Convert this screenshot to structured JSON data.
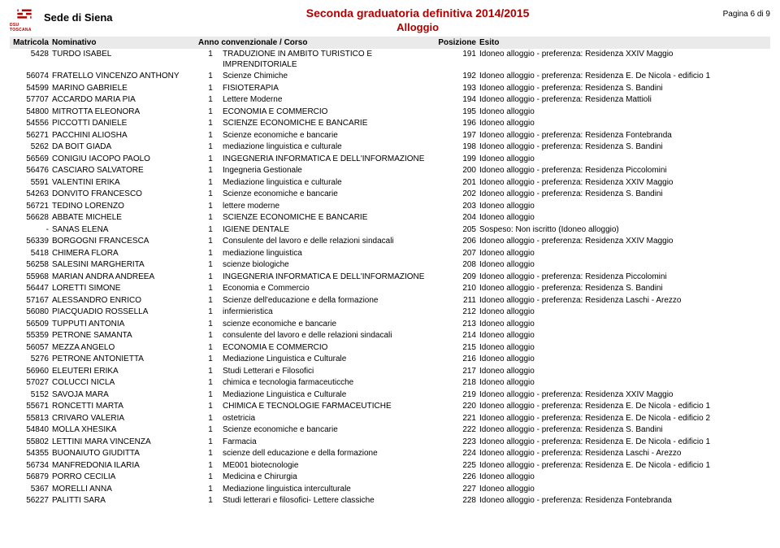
{
  "header": {
    "logo_text": "DSU TOSCANA",
    "sede": "Sede di Siena",
    "title_main": "Seconda graduatoria definitiva 2014/2015",
    "title_sub": "Alloggio",
    "page_num": "Pagina 6 di 9"
  },
  "columns": {
    "matricola": "Matricola",
    "nominativo": "Nominativo",
    "anno_corso": "Anno convenzionale / Corso",
    "posizione": "Posizione",
    "esito": "Esito"
  },
  "rows": [
    {
      "mat": "5428",
      "nom": "TURDO ISABEL",
      "anno": "1",
      "corso": "TRADUZIONE IN AMBITO TURISTICO E IMPRENDITORIALE",
      "pos": "191",
      "esito": "Idoneo alloggio - preferenza: Residenza XXIV Maggio"
    },
    {
      "mat": "56074",
      "nom": "FRATELLO VINCENZO ANTHONY",
      "anno": "1",
      "corso": "Scienze Chimiche",
      "pos": "192",
      "esito": "Idoneo alloggio - preferenza: Residenza E. De Nicola - edificio 1"
    },
    {
      "mat": "54599",
      "nom": "MARINO GABRIELE",
      "anno": "1",
      "corso": "FISIOTERAPIA",
      "pos": "193",
      "esito": "Idoneo alloggio - preferenza: Residenza S. Bandini"
    },
    {
      "mat": "57707",
      "nom": "ACCARDO MARIA PIA",
      "anno": "1",
      "corso": "Lettere Moderne",
      "pos": "194",
      "esito": "Idoneo alloggio - preferenza: Residenza Mattioli"
    },
    {
      "mat": "54800",
      "nom": "MITROTTA ELEONORA",
      "anno": "1",
      "corso": "ECONOMIA E COMMERCIO",
      "pos": "195",
      "esito": "Idoneo alloggio"
    },
    {
      "mat": "54556",
      "nom": "PICCOTTI DANIELE",
      "anno": "1",
      "corso": "SCIENZE ECONOMICHE E BANCARIE",
      "pos": "196",
      "esito": "Idoneo alloggio"
    },
    {
      "mat": "56271",
      "nom": "PACCHINI ALIOSHA",
      "anno": "1",
      "corso": "Scienze economiche e bancarie",
      "pos": "197",
      "esito": "Idoneo alloggio - preferenza: Residenza Fontebranda"
    },
    {
      "mat": "5262",
      "nom": "DA BOIT GIADA",
      "anno": "1",
      "corso": "mediazione linguistica e culturale",
      "pos": "198",
      "esito": "Idoneo alloggio - preferenza: Residenza S. Bandini"
    },
    {
      "mat": "56569",
      "nom": "CONIGIU IACOPO PAOLO",
      "anno": "1",
      "corso": "INGEGNERIA INFORMATICA E DELL'INFORMAZIONE",
      "pos": "199",
      "esito": "Idoneo alloggio"
    },
    {
      "mat": "56476",
      "nom": "CASCIARO SALVATORE",
      "anno": "1",
      "corso": "Ingegneria Gestionale",
      "pos": "200",
      "esito": "Idoneo alloggio - preferenza: Residenza Piccolomini"
    },
    {
      "mat": "5591",
      "nom": "VALENTINI ERIKA",
      "anno": "1",
      "corso": "Mediazione linguistica e culturale",
      "pos": "201",
      "esito": "Idoneo alloggio - preferenza: Residenza XXIV Maggio"
    },
    {
      "mat": "54263",
      "nom": "DONVITO FRANCESCO",
      "anno": "1",
      "corso": "Scienze economiche e bancarie",
      "pos": "202",
      "esito": "Idoneo alloggio - preferenza: Residenza S. Bandini"
    },
    {
      "mat": "56721",
      "nom": "TEDINO LORENZO",
      "anno": "1",
      "corso": "lettere moderne",
      "pos": "203",
      "esito": "Idoneo alloggio"
    },
    {
      "mat": "56628",
      "nom": "ABBATE MICHELE",
      "anno": "1",
      "corso": "SCIENZE ECONOMICHE E BANCARIE",
      "pos": "204",
      "esito": "Idoneo alloggio"
    },
    {
      "mat": "-",
      "nom": "SANAS ELENA",
      "anno": "1",
      "corso": "IGIENE DENTALE",
      "pos": "205",
      "esito": "Sospeso: Non iscritto (Idoneo alloggio)"
    },
    {
      "mat": "56339",
      "nom": "BORGOGNI FRANCESCA",
      "anno": "1",
      "corso": "Consulente del lavoro e delle relazioni sindacali",
      "pos": "206",
      "esito": "Idoneo alloggio - preferenza: Residenza XXIV Maggio"
    },
    {
      "mat": "5418",
      "nom": "CHIMERA FLORA",
      "anno": "1",
      "corso": "mediazione linguistica",
      "pos": "207",
      "esito": "Idoneo alloggio"
    },
    {
      "mat": "56258",
      "nom": "SALESINI MARGHERITA",
      "anno": "1",
      "corso": "scienze biologiche",
      "pos": "208",
      "esito": "Idoneo alloggio"
    },
    {
      "mat": "55968",
      "nom": "MARIAN ANDRA ANDREEA",
      "anno": "1",
      "corso": "INGEGNERIA INFORMATICA E DELL'INFORMAZIONE",
      "pos": "209",
      "esito": "Idoneo alloggio - preferenza: Residenza Piccolomini"
    },
    {
      "mat": "56447",
      "nom": "LORETTI SIMONE",
      "anno": "1",
      "corso": "Economia e Commercio",
      "pos": "210",
      "esito": "Idoneo alloggio - preferenza: Residenza S. Bandini"
    },
    {
      "mat": "57167",
      "nom": "ALESSANDRO ENRICO",
      "anno": "1",
      "corso": "Scienze dell'educazione e della formazione",
      "pos": "211",
      "esito": "Idoneo alloggio - preferenza: Residenza Laschi - Arezzo"
    },
    {
      "mat": "56080",
      "nom": "PIACQUADIO ROSSELLA",
      "anno": "1",
      "corso": "infermieristica",
      "pos": "212",
      "esito": "Idoneo alloggio"
    },
    {
      "mat": "56509",
      "nom": "TUPPUTI ANTONIA",
      "anno": "1",
      "corso": "scienze economiche e bancarie",
      "pos": "213",
      "esito": "Idoneo alloggio"
    },
    {
      "mat": "55359",
      "nom": "PETRONE SAMANTA",
      "anno": "1",
      "corso": "consulente del lavoro e delle relazioni sindacali",
      "pos": "214",
      "esito": "Idoneo alloggio"
    },
    {
      "mat": "56057",
      "nom": "MEZZA ANGELO",
      "anno": "1",
      "corso": "ECONOMIA E COMMERCIO",
      "pos": "215",
      "esito": "Idoneo alloggio"
    },
    {
      "mat": "5276",
      "nom": "PETRONE ANTONIETTA",
      "anno": "1",
      "corso": "Mediazione Linguistica e Culturale",
      "pos": "216",
      "esito": "Idoneo alloggio"
    },
    {
      "mat": "56960",
      "nom": "ELEUTERI ERIKA",
      "anno": "1",
      "corso": "Studi Letterari e Filosofici",
      "pos": "217",
      "esito": "Idoneo alloggio"
    },
    {
      "mat": "57027",
      "nom": "COLUCCI NICLA",
      "anno": "1",
      "corso": "chimica e tecnologia farmaceuticche",
      "pos": "218",
      "esito": "Idoneo alloggio"
    },
    {
      "mat": "5152",
      "nom": "SAVOJA MARA",
      "anno": "1",
      "corso": "Mediazione Linguistica e Culturale",
      "pos": "219",
      "esito": "Idoneo alloggio - preferenza: Residenza XXIV Maggio"
    },
    {
      "mat": "55671",
      "nom": "RONCETTI MARTA",
      "anno": "1",
      "corso": "CHIMICA E TECNOLOGIE FARMACEUTICHE",
      "pos": "220",
      "esito": "Idoneo alloggio - preferenza: Residenza E. De Nicola - edificio 1"
    },
    {
      "mat": "55813",
      "nom": "CRIVARO VALERIA",
      "anno": "1",
      "corso": "ostetricia",
      "pos": "221",
      "esito": "Idoneo alloggio - preferenza: Residenza E. De Nicola - edificio 2"
    },
    {
      "mat": "54840",
      "nom": "MOLLA XHESIKA",
      "anno": "1",
      "corso": "Scienze economiche  e bancarie",
      "pos": "222",
      "esito": "Idoneo alloggio - preferenza: Residenza S. Bandini"
    },
    {
      "mat": "55802",
      "nom": "LETTINI MARA VINCENZA",
      "anno": "1",
      "corso": "Farmacia",
      "pos": "223",
      "esito": "Idoneo alloggio - preferenza: Residenza E. De Nicola - edificio 1"
    },
    {
      "mat": "54355",
      "nom": "BUONAIUTO GIUDITTA",
      "anno": "1",
      "corso": "scienze dell educazione e della formazione",
      "pos": "224",
      "esito": "Idoneo alloggio - preferenza: Residenza Laschi - Arezzo"
    },
    {
      "mat": "56734",
      "nom": "MANFREDONIA ILARIA",
      "anno": "1",
      "corso": "ME001 biotecnologie",
      "pos": "225",
      "esito": "Idoneo alloggio - preferenza: Residenza E. De Nicola - edificio 1"
    },
    {
      "mat": "56879",
      "nom": "PORRO CECILIA",
      "anno": "1",
      "corso": "Medicina e Chirurgia",
      "pos": "226",
      "esito": "Idoneo alloggio"
    },
    {
      "mat": "5367",
      "nom": "MORELLI ANNA",
      "anno": "1",
      "corso": "Mediazione linguistica interculturale",
      "pos": "227",
      "esito": "Idoneo alloggio"
    },
    {
      "mat": "56227",
      "nom": "PALITTI SARA",
      "anno": "1",
      "corso": "Studi letterari e filosofici- Lettere classiche",
      "pos": "228",
      "esito": "Idoneo alloggio - preferenza: Residenza Fontebranda"
    }
  ]
}
